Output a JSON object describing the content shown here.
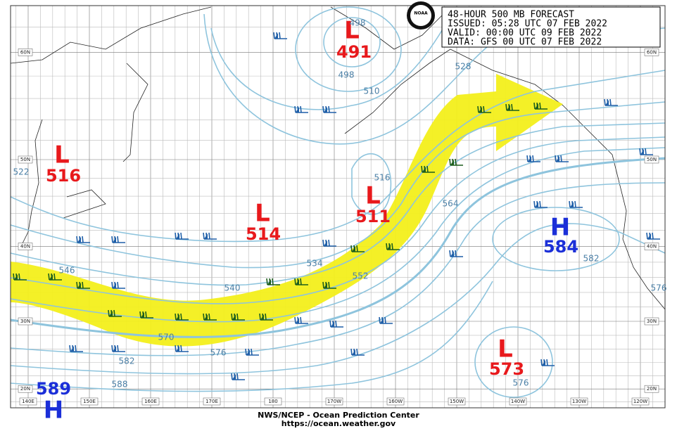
{
  "header": {
    "lines": [
      "48-HOUR 500 MB FORECAST",
      "ISSUED: 05:28 UTC 07 FEB 2022",
      "VALID:  00:00 UTC 09 FEB 2022",
      "DATA:  GFS 00 UTC 07 FEB 2022"
    ]
  },
  "logo": "NOAA",
  "systems": [
    {
      "type": "L",
      "value": "491"
    },
    {
      "type": "L",
      "value": "516"
    },
    {
      "type": "L",
      "value": "514"
    },
    {
      "type": "L",
      "value": "511"
    },
    {
      "type": "H",
      "value": "584"
    },
    {
      "type": "L",
      "value": "573"
    },
    {
      "type": "H",
      "value": "589"
    }
  ],
  "contour_labels": [
    "498",
    "498",
    "510",
    "528",
    "516",
    "522",
    "546",
    "540",
    "534",
    "552",
    "564",
    "570",
    "576",
    "582",
    "588",
    "582",
    "576",
    "576"
  ],
  "latitudes": [
    "60N",
    "50N",
    "40N",
    "30N",
    "20N"
  ],
  "longitudes": [
    "140E",
    "150E",
    "160E",
    "170E",
    "180",
    "170W",
    "160W",
    "150W",
    "140W",
    "130W",
    "120W"
  ],
  "footer": {
    "agency": "NWS/NCEP - Ocean Prediction Center",
    "url": "https://ocean.weather.gov"
  }
}
